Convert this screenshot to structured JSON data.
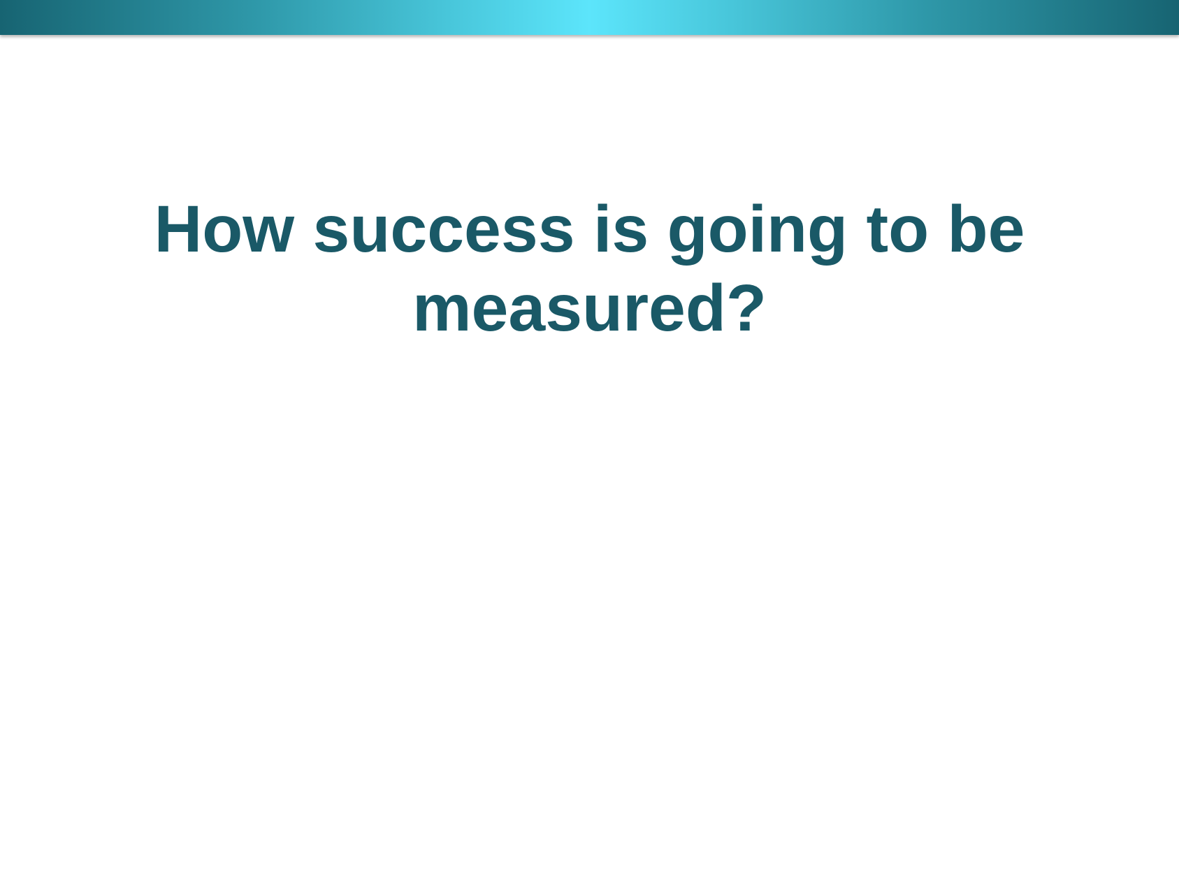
{
  "slide": {
    "title": "How success is going to be measured?",
    "colors": {
      "title_text": "#1a5967",
      "bar_dark": "#176472",
      "bar_light": "#5ce5fb",
      "background": "#ffffff"
    }
  }
}
